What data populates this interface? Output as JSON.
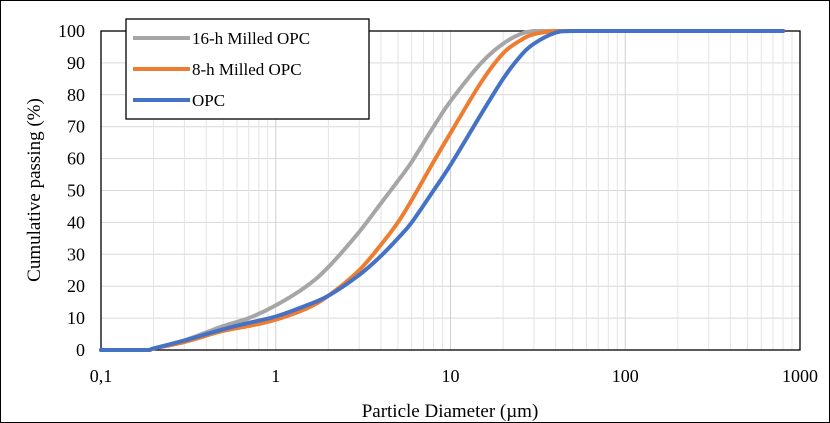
{
  "chart_data": {
    "type": "line",
    "title": "",
    "xlabel": "Particle Diameter (µm)",
    "ylabel": "Cumulative passing (%)",
    "x_scale": "log",
    "xlim": [
      0.1,
      1000
    ],
    "ylim": [
      0,
      100
    ],
    "x_ticks": [
      "0,1",
      "1",
      "10",
      "100",
      "1000"
    ],
    "y_ticks": [
      "0",
      "10",
      "20",
      "30",
      "40",
      "50",
      "60",
      "70",
      "80",
      "90",
      "100"
    ],
    "grid": true,
    "legend_position": "top-left",
    "series": [
      {
        "name": "16-h Milled OPC",
        "color": "#a6a6a6",
        "x": [
          0.1,
          0.18,
          0.2,
          0.3,
          0.5,
          0.7,
          1,
          1.5,
          2,
          3,
          4,
          5,
          6,
          8,
          10,
          15,
          20,
          25,
          30,
          40,
          50,
          100,
          800
        ],
        "y": [
          0,
          0,
          0.5,
          3,
          7.5,
          10,
          14,
          20,
          26,
          37,
          46,
          53,
          59,
          70,
          78,
          90,
          96,
          99,
          100,
          100,
          100,
          100,
          100
        ]
      },
      {
        "name": "8-h Milled OPC",
        "color": "#ed7d31",
        "x": [
          0.1,
          0.18,
          0.2,
          0.3,
          0.5,
          0.7,
          1,
          1.5,
          2,
          3,
          4,
          5,
          6,
          8,
          10,
          15,
          20,
          25,
          30,
          40,
          50,
          100,
          800
        ],
        "y": [
          0,
          0,
          0.5,
          2.5,
          6,
          7.5,
          9.5,
          13,
          17,
          25,
          33,
          40,
          47,
          59,
          68,
          84,
          93,
          97,
          99,
          100,
          100,
          100,
          100
        ]
      },
      {
        "name": "OPC",
        "color": "#4472c4",
        "x": [
          0.1,
          0.18,
          0.2,
          0.3,
          0.5,
          0.7,
          1,
          1.5,
          2,
          3,
          4,
          5,
          6,
          8,
          10,
          15,
          20,
          25,
          30,
          40,
          50,
          100,
          800
        ],
        "y": [
          0,
          0,
          0.5,
          3,
          6.5,
          8.5,
          10.5,
          14,
          17,
          23.5,
          29.5,
          35,
          40,
          50,
          58,
          74,
          85,
          92,
          96,
          99.5,
          100,
          100,
          100
        ]
      }
    ]
  }
}
